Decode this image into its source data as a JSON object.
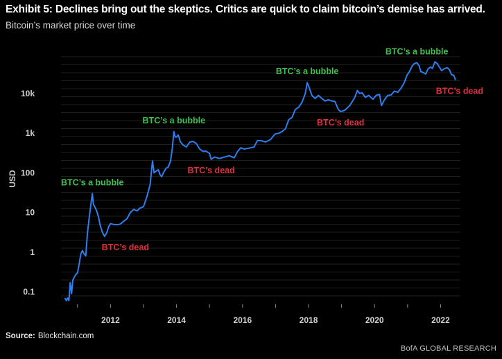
{
  "header": {
    "title": "Exhibit 5: Declines bring out the skeptics. Critics are quick to  claim bitcoin’s demise has arrived.",
    "subtitle": "Bitcoin’s market price over time"
  },
  "footer": {
    "source_label": "Source:",
    "source_value": "Blockchain.com",
    "brand": "BofA GLOBAL RESEARCH"
  },
  "colors": {
    "background": "#000000",
    "line": "#2f7ef0",
    "gridline": "#2a2a2a",
    "bubble_label": "#3fbf4f",
    "dead_label": "#e0303a",
    "axis_text": "#d0d0d0"
  },
  "chart_data": {
    "type": "line",
    "title": "Bitcoin’s market price over time",
    "xlabel": "",
    "ylabel": "USD",
    "y_scale": "log",
    "ylim": [
      0.05,
      90000
    ],
    "xlim": [
      2010.5,
      2022.6
    ],
    "grid": true,
    "y_ticks": [
      {
        "value": 0.1,
        "label": "0.1"
      },
      {
        "value": 1,
        "label": "1"
      },
      {
        "value": 10,
        "label": "10"
      },
      {
        "value": 100,
        "label": "100"
      },
      {
        "value": 1000,
        "label": "1k"
      },
      {
        "value": 10000,
        "label": "10k"
      }
    ],
    "x_ticks": [
      {
        "value": 2012,
        "label": "2012"
      },
      {
        "value": 2014,
        "label": "2014"
      },
      {
        "value": 2016,
        "label": "2016"
      },
      {
        "value": 2018,
        "label": "2018"
      },
      {
        "value": 2020,
        "label": "2020"
      },
      {
        "value": 2022,
        "label": "2022"
      }
    ],
    "series": [
      {
        "points": [
          [
            2010.62,
            0.07
          ],
          [
            2010.66,
            0.06
          ],
          [
            2010.7,
            0.07
          ],
          [
            2010.74,
            0.06
          ],
          [
            2010.78,
            0.17
          ],
          [
            2010.82,
            0.09
          ],
          [
            2010.86,
            0.2
          ],
          [
            2010.9,
            0.23
          ],
          [
            2010.96,
            0.28
          ],
          [
            2011.0,
            0.3
          ],
          [
            2011.05,
            0.5
          ],
          [
            2011.1,
            0.9
          ],
          [
            2011.15,
            1.1
          ],
          [
            2011.2,
            0.9
          ],
          [
            2011.25,
            0.8
          ],
          [
            2011.3,
            3.0
          ],
          [
            2011.36,
            8.0
          ],
          [
            2011.42,
            20.0
          ],
          [
            2011.45,
            30.0
          ],
          [
            2011.48,
            16.0
          ],
          [
            2011.52,
            14.0
          ],
          [
            2011.58,
            11.0
          ],
          [
            2011.63,
            8.0
          ],
          [
            2011.68,
            5.0
          ],
          [
            2011.75,
            3.2
          ],
          [
            2011.82,
            2.5
          ],
          [
            2011.88,
            3.0
          ],
          [
            2011.95,
            4.5
          ],
          [
            2012.0,
            5.2
          ],
          [
            2012.1,
            5.0
          ],
          [
            2012.2,
            4.9
          ],
          [
            2012.3,
            5.1
          ],
          [
            2012.4,
            6.0
          ],
          [
            2012.5,
            7.0
          ],
          [
            2012.6,
            10.0
          ],
          [
            2012.7,
            12.0
          ],
          [
            2012.8,
            11.0
          ],
          [
            2012.9,
            13.0
          ],
          [
            2013.0,
            14.0
          ],
          [
            2013.1,
            25.0
          ],
          [
            2013.2,
            50.0
          ],
          [
            2013.27,
            200.0
          ],
          [
            2013.32,
            100.0
          ],
          [
            2013.38,
            110.0
          ],
          [
            2013.45,
            120.0
          ],
          [
            2013.5,
            90.0
          ],
          [
            2013.55,
            80.0
          ],
          [
            2013.6,
            100.0
          ],
          [
            2013.68,
            130.0
          ],
          [
            2013.75,
            140.0
          ],
          [
            2013.82,
            200.0
          ],
          [
            2013.87,
            400.0
          ],
          [
            2013.92,
            1100.0
          ],
          [
            2013.96,
            800.0
          ],
          [
            2014.0,
            800.0
          ],
          [
            2014.05,
            900.0
          ],
          [
            2014.12,
            600.0
          ],
          [
            2014.2,
            500.0
          ],
          [
            2014.3,
            450.0
          ],
          [
            2014.4,
            600.0
          ],
          [
            2014.5,
            620.0
          ],
          [
            2014.6,
            550.0
          ],
          [
            2014.7,
            400.0
          ],
          [
            2014.8,
            350.0
          ],
          [
            2014.9,
            350.0
          ],
          [
            2015.0,
            310.0
          ],
          [
            2015.05,
            220.0
          ],
          [
            2015.15,
            250.0
          ],
          [
            2015.3,
            230.0
          ],
          [
            2015.45,
            250.0
          ],
          [
            2015.6,
            270.0
          ],
          [
            2015.75,
            240.0
          ],
          [
            2015.85,
            350.0
          ],
          [
            2015.95,
            430.0
          ],
          [
            2016.05,
            400.0
          ],
          [
            2016.2,
            420.0
          ],
          [
            2016.35,
            450.0
          ],
          [
            2016.45,
            650.0
          ],
          [
            2016.55,
            650.0
          ],
          [
            2016.7,
            600.0
          ],
          [
            2016.85,
            700.0
          ],
          [
            2016.98,
            950.0
          ],
          [
            2017.1,
            1000.0
          ],
          [
            2017.2,
            1100.0
          ],
          [
            2017.3,
            1300.0
          ],
          [
            2017.4,
            2200.0
          ],
          [
            2017.5,
            2500.0
          ],
          [
            2017.6,
            4000.0
          ],
          [
            2017.7,
            4500.0
          ],
          [
            2017.8,
            6000.0
          ],
          [
            2017.9,
            10000.0
          ],
          [
            2017.96,
            19000.0
          ],
          [
            2018.02,
            14000.0
          ],
          [
            2018.1,
            9000.0
          ],
          [
            2018.2,
            7500.0
          ],
          [
            2018.3,
            9000.0
          ],
          [
            2018.4,
            7500.0
          ],
          [
            2018.5,
            6500.0
          ],
          [
            2018.6,
            7000.0
          ],
          [
            2018.7,
            6500.0
          ],
          [
            2018.8,
            6300.0
          ],
          [
            2018.9,
            4000.0
          ],
          [
            2018.97,
            3500.0
          ],
          [
            2019.1,
            3800.0
          ],
          [
            2019.25,
            5000.0
          ],
          [
            2019.4,
            8000.0
          ],
          [
            2019.48,
            12000.0
          ],
          [
            2019.55,
            10000.0
          ],
          [
            2019.62,
            10500.0
          ],
          [
            2019.72,
            8000.0
          ],
          [
            2019.82,
            9000.0
          ],
          [
            2019.95,
            7200.0
          ],
          [
            2020.05,
            9000.0
          ],
          [
            2020.15,
            9500.0
          ],
          [
            2020.21,
            5000.0
          ],
          [
            2020.3,
            7000.0
          ],
          [
            2020.4,
            9000.0
          ],
          [
            2020.5,
            9200.0
          ],
          [
            2020.6,
            11500.0
          ],
          [
            2020.7,
            10800.0
          ],
          [
            2020.8,
            13500.0
          ],
          [
            2020.9,
            19000.0
          ],
          [
            2020.98,
            29000.0
          ],
          [
            2021.05,
            35000.0
          ],
          [
            2021.13,
            48000.0
          ],
          [
            2021.2,
            57000.0
          ],
          [
            2021.28,
            60000.0
          ],
          [
            2021.35,
            50000.0
          ],
          [
            2021.4,
            36000.0
          ],
          [
            2021.5,
            33000.0
          ],
          [
            2021.55,
            31000.0
          ],
          [
            2021.62,
            42000.0
          ],
          [
            2021.7,
            47000.0
          ],
          [
            2021.75,
            43000.0
          ],
          [
            2021.83,
            63000.0
          ],
          [
            2021.9,
            57000.0
          ],
          [
            2021.95,
            48000.0
          ],
          [
            2022.03,
            38000.0
          ],
          [
            2022.1,
            42000.0
          ],
          [
            2022.2,
            45000.0
          ],
          [
            2022.27,
            40000.0
          ],
          [
            2022.33,
            30000.0
          ],
          [
            2022.4,
            29000.0
          ],
          [
            2022.45,
            22000.0
          ]
        ]
      }
    ],
    "annotations": [
      {
        "text": "BTC’s a bubble",
        "kind": "bubble",
        "x": 2011.45,
        "y": 30.0
      },
      {
        "text": "BTC’s dead",
        "kind": "dead",
        "x": 2011.82,
        "y": 2.5
      },
      {
        "text": "BTC’s a bubble",
        "kind": "bubble",
        "x": 2013.92,
        "y": 1100.0
      },
      {
        "text": "BTC’s dead",
        "kind": "dead",
        "x": 2015.05,
        "y": 220.0
      },
      {
        "text": "BTC’s a bubble",
        "kind": "bubble",
        "x": 2017.96,
        "y": 19000.0
      },
      {
        "text": "BTC’s dead",
        "kind": "dead",
        "x": 2018.97,
        "y": 3500.0
      },
      {
        "text": "BTC’s a bubble",
        "kind": "bubble",
        "x": 2021.28,
        "y": 60000.0
      },
      {
        "text": "BTC’s dead",
        "kind": "dead",
        "x": 2022.45,
        "y": 22000.0
      }
    ]
  }
}
